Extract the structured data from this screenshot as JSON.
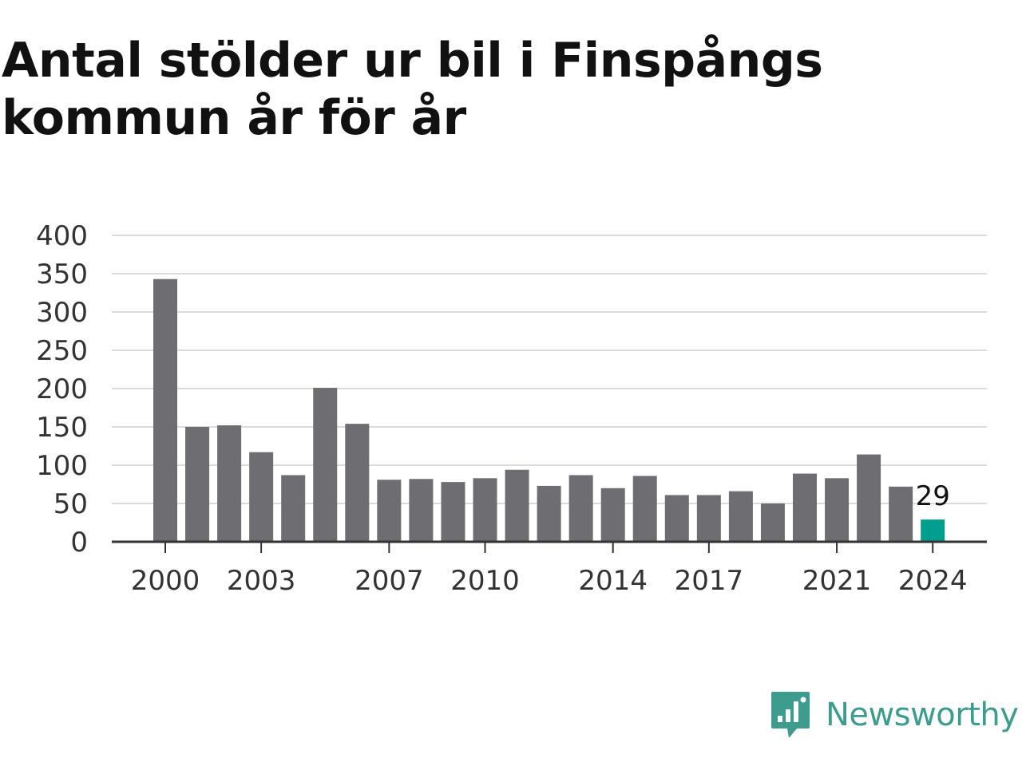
{
  "chart_data": {
    "type": "bar",
    "title": "Antal stölder ur bil i Finspångs kommun år för år",
    "x": [
      2000,
      2001,
      2002,
      2003,
      2004,
      2005,
      2006,
      2007,
      2008,
      2009,
      2010,
      2011,
      2012,
      2013,
      2014,
      2015,
      2016,
      2017,
      2018,
      2019,
      2020,
      2021,
      2022,
      2023,
      2024
    ],
    "values": [
      343,
      150,
      152,
      117,
      87,
      201,
      154,
      81,
      82,
      78,
      83,
      94,
      73,
      87,
      70,
      86,
      61,
      61,
      66,
      50,
      89,
      83,
      114,
      72,
      29
    ],
    "x_tick_labels": [
      "2000",
      "2003",
      "2007",
      "2010",
      "2014",
      "2017",
      "2021",
      "2024"
    ],
    "y_ticks": [
      "0",
      "50",
      "100",
      "150",
      "200",
      "250",
      "300",
      "350",
      "400"
    ],
    "ylim": [
      0,
      400
    ],
    "grid": true,
    "highlight": {
      "year": 2024,
      "label": "29"
    },
    "colors": {
      "bar": "#6e6d72",
      "highlight": "#009e8f",
      "grid": "#dcdcdc",
      "axis": "#333333"
    }
  },
  "brand": {
    "name": "Newsworthy",
    "color": "#3d9c8e",
    "icon": "newsworthy-logo-icon"
  }
}
